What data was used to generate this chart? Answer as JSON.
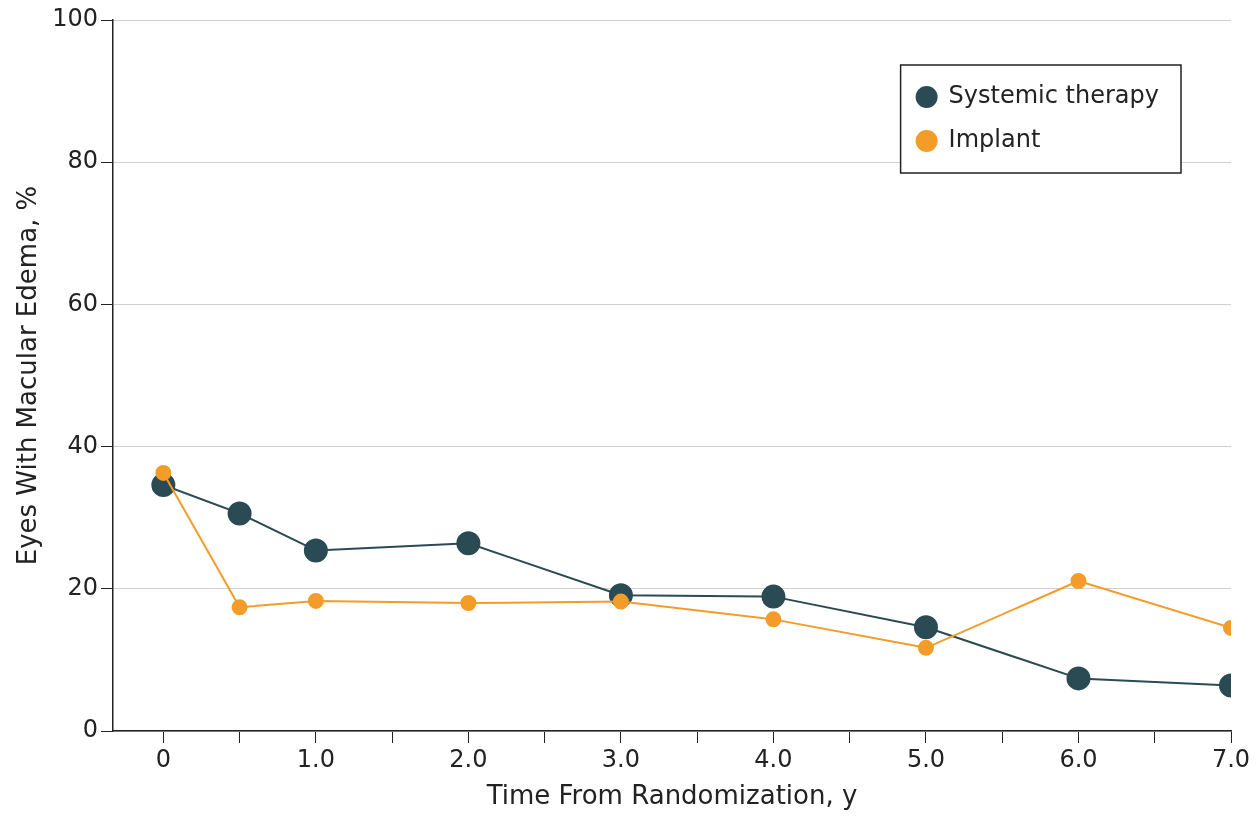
{
  "chart_data": {
    "type": "line",
    "xlabel": "Time From Randomization, y",
    "ylabel": "Eyes With Macular Edema, %",
    "xlim": [
      -0.33,
      7.0
    ],
    "xticks": [
      0,
      {
        "value": 0.5,
        "label": null
      },
      {
        "value": 1,
        "label": "1.0"
      },
      {
        "value": 1.5,
        "label": null
      },
      {
        "value": 2,
        "label": "2.0"
      },
      {
        "value": 2.5,
        "label": null
      },
      {
        "value": 3,
        "label": "3.0"
      },
      {
        "value": 3.5,
        "label": null
      },
      {
        "value": 4,
        "label": "4.0"
      },
      {
        "value": 4.5,
        "label": null
      },
      {
        "value": 5,
        "label": "5.0"
      },
      {
        "value": 5.5,
        "label": null
      },
      {
        "value": 6,
        "label": "6.0"
      },
      {
        "value": 6.5,
        "label": null
      },
      {
        "value": 7,
        "label": "7.0"
      }
    ],
    "ylim": [
      0,
      100
    ],
    "yticks": [
      0,
      20,
      40,
      60,
      80,
      100
    ],
    "x": [
      0,
      0.5,
      1,
      2,
      3,
      4,
      5,
      6,
      7
    ],
    "series": [
      {
        "name": "Systemic therapy",
        "color": "#2a4a54",
        "values": [
          34.6,
          30.6,
          25.4,
          26.4,
          19.1,
          18.9,
          14.6,
          7.4,
          6.4
        ]
      },
      {
        "name": "Implant",
        "color": "#f39c2a",
        "values": [
          36.3,
          17.4,
          18.3,
          18.0,
          18.2,
          15.7,
          11.7,
          21.1,
          14.5
        ]
      }
    ],
    "grid": "y",
    "legend": "top right",
    "marker": "circle",
    "line_style": "solid"
  }
}
